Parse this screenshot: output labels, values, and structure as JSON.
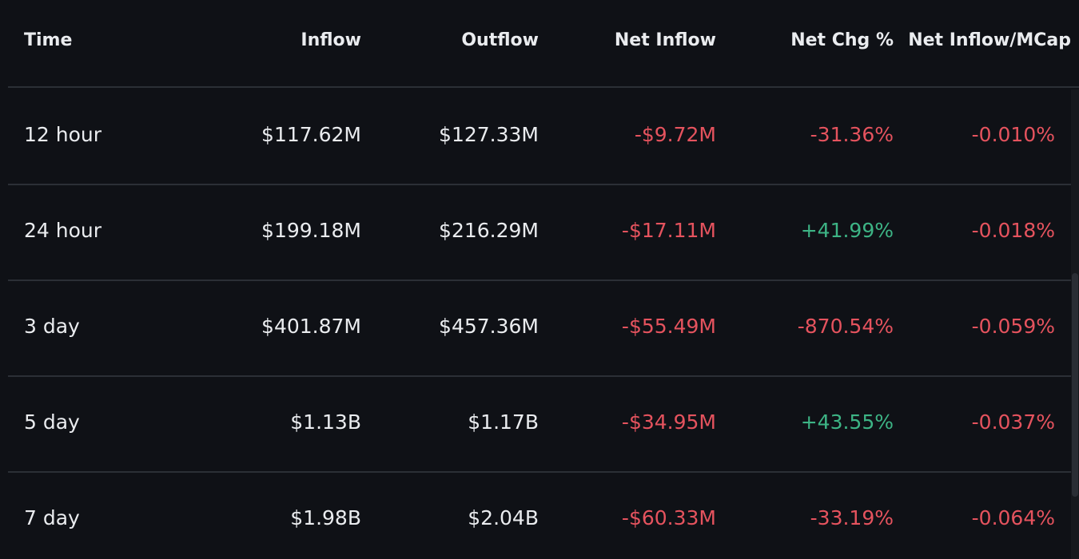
{
  "columns": [
    "Time",
    "Inflow",
    "Outflow",
    "Net Inflow",
    "Net Chg %",
    "Net Inflow/MCap"
  ],
  "rows": [
    {
      "time": "12 hour",
      "inflow": "$117.62M",
      "outflow": "$127.33M",
      "net_inflow": "-$9.72M",
      "net_chg": "-31.36%",
      "net_mcap": "-0.010%"
    },
    {
      "time": "24 hour",
      "inflow": "$199.18M",
      "outflow": "$216.29M",
      "net_inflow": "-$17.11M",
      "net_chg": "+41.99%",
      "net_mcap": "-0.018%"
    },
    {
      "time": "3 day",
      "inflow": "$401.87M",
      "outflow": "$457.36M",
      "net_inflow": "-$55.49M",
      "net_chg": "-870.54%",
      "net_mcap": "-0.059%"
    },
    {
      "time": "5 day",
      "inflow": "$1.13B",
      "outflow": "$1.17B",
      "net_inflow": "-$34.95M",
      "net_chg": "+43.55%",
      "net_mcap": "-0.037%"
    },
    {
      "time": "7 day",
      "inflow": "$1.98B",
      "outflow": "$2.04B",
      "net_inflow": "-$60.33M",
      "net_chg": "-33.19%",
      "net_mcap": "-0.064%"
    }
  ],
  "colors": {
    "background": "#0f1116",
    "text": "#eaecef",
    "negative": "#e5535e",
    "positive": "#3db485",
    "divider": "#2b2f36"
  }
}
